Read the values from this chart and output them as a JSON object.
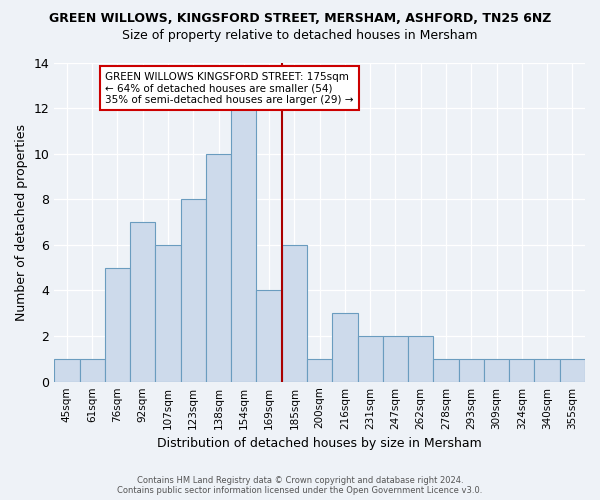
{
  "title": "GREEN WILLOWS, KINGSFORD STREET, MERSHAM, ASHFORD, TN25 6NZ",
  "subtitle": "Size of property relative to detached houses in Mersham",
  "xlabel": "Distribution of detached houses by size in Mersham",
  "ylabel": "Number of detached properties",
  "categories": [
    "45sqm",
    "61sqm",
    "76sqm",
    "92sqm",
    "107sqm",
    "123sqm",
    "138sqm",
    "154sqm",
    "169sqm",
    "185sqm",
    "200sqm",
    "216sqm",
    "231sqm",
    "247sqm",
    "262sqm",
    "278sqm",
    "293sqm",
    "309sqm",
    "324sqm",
    "340sqm",
    "355sqm"
  ],
  "values": [
    1,
    1,
    5,
    7,
    6,
    8,
    10,
    13,
    4,
    6,
    1,
    3,
    2,
    2,
    2,
    1,
    1,
    1,
    1,
    1,
    1
  ],
  "bar_color": "#cddaeb",
  "bar_edge_color": "#6a9cbf",
  "background_color": "#eef2f7",
  "grid_color": "#ffffff",
  "vline_x": 8.5,
  "vline_color": "#aa0000",
  "annotation_title": "GREEN WILLOWS KINGSFORD STREET: 175sqm",
  "annotation_line1": "← 64% of detached houses are smaller (54)",
  "annotation_line2": "35% of semi-detached houses are larger (29) →",
  "annotation_box_facecolor": "#ffffff",
  "annotation_box_edgecolor": "#cc0000",
  "ylim": [
    0,
    14
  ],
  "yticks": [
    0,
    2,
    4,
    6,
    8,
    10,
    12,
    14
  ],
  "footer_line1": "Contains HM Land Registry data © Crown copyright and database right 2024.",
  "footer_line2": "Contains public sector information licensed under the Open Government Licence v3.0."
}
